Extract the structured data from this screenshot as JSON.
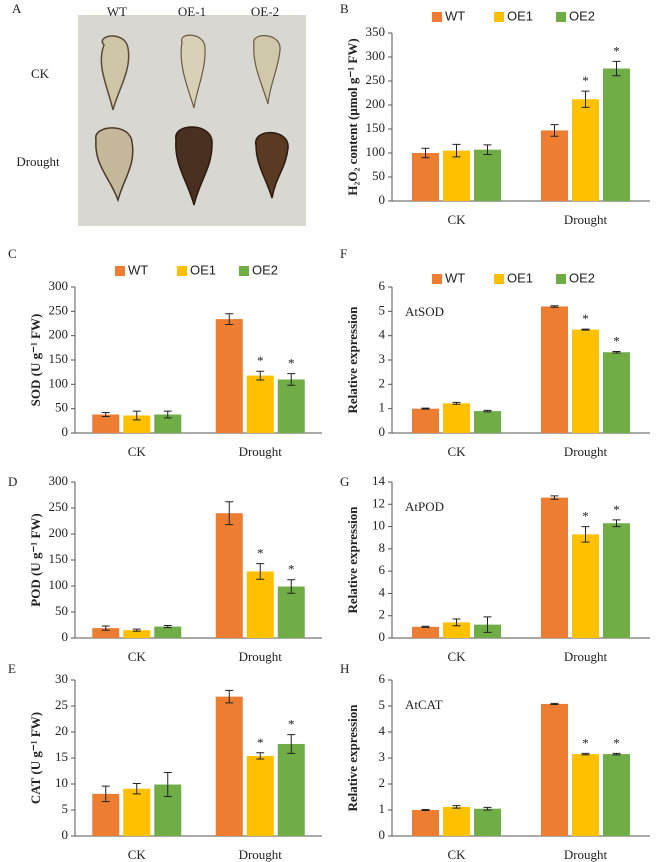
{
  "photo_panel": {
    "letter": "A",
    "columns": [
      "WT",
      "OE-1",
      "OE-2"
    ],
    "rows": [
      "CK",
      "Drought"
    ]
  },
  "chart_data": [
    {
      "type": "bar",
      "panel": "B",
      "ylabel": "H₂O₂ content (μmol g⁻¹ FW)",
      "categories": [
        "CK",
        "Drought"
      ],
      "ylim": [
        0,
        350
      ],
      "yticks": [
        0,
        50,
        100,
        150,
        200,
        250,
        300,
        350
      ],
      "legend": true,
      "series": [
        {
          "name": "WT",
          "color": "#ED7D31",
          "values": [
            100,
            147
          ],
          "errors": [
            10,
            12
          ],
          "significance": [
            null,
            null
          ]
        },
        {
          "name": "OE1",
          "color": "#FFC000",
          "values": [
            105,
            212
          ],
          "errors": [
            13,
            17
          ],
          "significance": [
            null,
            "*"
          ]
        },
        {
          "name": "OE2",
          "color": "#70AD47",
          "values": [
            107,
            276
          ],
          "errors": [
            10,
            15
          ],
          "significance": [
            null,
            "*"
          ]
        }
      ]
    },
    {
      "type": "bar",
      "panel": "C",
      "ylabel": "SOD (U g⁻¹ FW)",
      "categories": [
        "CK",
        "Drought"
      ],
      "ylim": [
        0,
        300
      ],
      "yticks": [
        0,
        50,
        100,
        150,
        200,
        250,
        300
      ],
      "legend": true,
      "series": [
        {
          "name": "WT",
          "color": "#ED7D31",
          "values": [
            38,
            234
          ],
          "errors": [
            4,
            11
          ],
          "significance": [
            null,
            null
          ]
        },
        {
          "name": "OE1",
          "color": "#FFC000",
          "values": [
            36,
            118
          ],
          "errors": [
            9,
            9
          ],
          "significance": [
            null,
            "*"
          ]
        },
        {
          "name": "OE2",
          "color": "#70AD47",
          "values": [
            38,
            110
          ],
          "errors": [
            7,
            12
          ],
          "significance": [
            null,
            "*"
          ]
        }
      ]
    },
    {
      "type": "bar",
      "panel": "F",
      "ylabel": "Relative expression",
      "inset_label": "AtSOD",
      "categories": [
        "CK",
        "Drought"
      ],
      "ylim": [
        0,
        6
      ],
      "yticks": [
        0,
        1,
        2,
        3,
        4,
        5,
        6
      ],
      "legend": true,
      "series": [
        {
          "name": "WT",
          "color": "#ED7D31",
          "values": [
            1.0,
            5.2
          ],
          "errors": [
            0.02,
            0.03
          ],
          "significance": [
            null,
            null
          ]
        },
        {
          "name": "OE1",
          "color": "#FFC000",
          "values": [
            1.22,
            4.25
          ],
          "errors": [
            0.04,
            0.02
          ],
          "significance": [
            null,
            "*"
          ]
        },
        {
          "name": "OE2",
          "color": "#70AD47",
          "values": [
            0.9,
            3.32
          ],
          "errors": [
            0.03,
            0.03
          ],
          "significance": [
            null,
            "*"
          ]
        }
      ]
    },
    {
      "type": "bar",
      "panel": "D",
      "ylabel": "POD (U g⁻¹ FW)",
      "categories": [
        "CK",
        "Drought"
      ],
      "ylim": [
        0,
        300
      ],
      "yticks": [
        0,
        50,
        100,
        150,
        200,
        250,
        300
      ],
      "legend": false,
      "series": [
        {
          "name": "WT",
          "color": "#ED7D31",
          "values": [
            19,
            240
          ],
          "errors": [
            4,
            22
          ],
          "significance": [
            null,
            null
          ]
        },
        {
          "name": "OE1",
          "color": "#FFC000",
          "values": [
            15,
            128
          ],
          "errors": [
            2,
            15
          ],
          "significance": [
            null,
            "*"
          ]
        },
        {
          "name": "OE2",
          "color": "#70AD47",
          "values": [
            22,
            99
          ],
          "errors": [
            2,
            13
          ],
          "significance": [
            null,
            "*"
          ]
        }
      ]
    },
    {
      "type": "bar",
      "panel": "G",
      "ylabel": "Relative expression",
      "inset_label": "AtPOD",
      "categories": [
        "CK",
        "Drought"
      ],
      "ylim": [
        0,
        14
      ],
      "yticks": [
        0,
        2,
        4,
        6,
        8,
        10,
        12,
        14
      ],
      "legend": false,
      "series": [
        {
          "name": "WT",
          "color": "#ED7D31",
          "values": [
            1.0,
            12.6
          ],
          "errors": [
            0.05,
            0.15
          ],
          "significance": [
            null,
            null
          ]
        },
        {
          "name": "OE1",
          "color": "#FFC000",
          "values": [
            1.4,
            9.3
          ],
          "errors": [
            0.3,
            0.7
          ],
          "significance": [
            null,
            "*"
          ]
        },
        {
          "name": "OE2",
          "color": "#70AD47",
          "values": [
            1.2,
            10.3
          ],
          "errors": [
            0.7,
            0.3
          ],
          "significance": [
            null,
            "*"
          ]
        }
      ]
    },
    {
      "type": "bar",
      "panel": "E",
      "ylabel": "CAT (U g⁻¹ FW)",
      "categories": [
        "CK",
        "Drought"
      ],
      "ylim": [
        0,
        30
      ],
      "yticks": [
        0,
        5,
        10,
        15,
        20,
        25,
        30
      ],
      "legend": false,
      "series": [
        {
          "name": "WT",
          "color": "#ED7D31",
          "values": [
            8.1,
            26.8
          ],
          "errors": [
            1.5,
            1.2
          ],
          "significance": [
            null,
            null
          ]
        },
        {
          "name": "OE1",
          "color": "#FFC000",
          "values": [
            9.1,
            15.4
          ],
          "errors": [
            1.0,
            0.6
          ],
          "significance": [
            null,
            "*"
          ]
        },
        {
          "name": "OE2",
          "color": "#70AD47",
          "values": [
            9.9,
            17.7
          ],
          "errors": [
            2.3,
            1.8
          ],
          "significance": [
            null,
            "*"
          ]
        }
      ]
    },
    {
      "type": "bar",
      "panel": "H",
      "ylabel": "Relative expression",
      "inset_label": "AtCAT",
      "categories": [
        "CK",
        "Drought"
      ],
      "ylim": [
        0,
        6
      ],
      "yticks": [
        0,
        1,
        2,
        3,
        4,
        5,
        6
      ],
      "legend": false,
      "series": [
        {
          "name": "WT",
          "color": "#ED7D31",
          "values": [
            1.0,
            5.08
          ],
          "errors": [
            0.02,
            0.02
          ],
          "significance": [
            null,
            null
          ]
        },
        {
          "name": "OE1",
          "color": "#FFC000",
          "values": [
            1.12,
            3.15
          ],
          "errors": [
            0.05,
            0.03
          ],
          "significance": [
            null,
            "*"
          ]
        },
        {
          "name": "OE2",
          "color": "#70AD47",
          "values": [
            1.05,
            3.15
          ],
          "errors": [
            0.05,
            0.03
          ],
          "significance": [
            null,
            "*"
          ]
        }
      ]
    }
  ]
}
